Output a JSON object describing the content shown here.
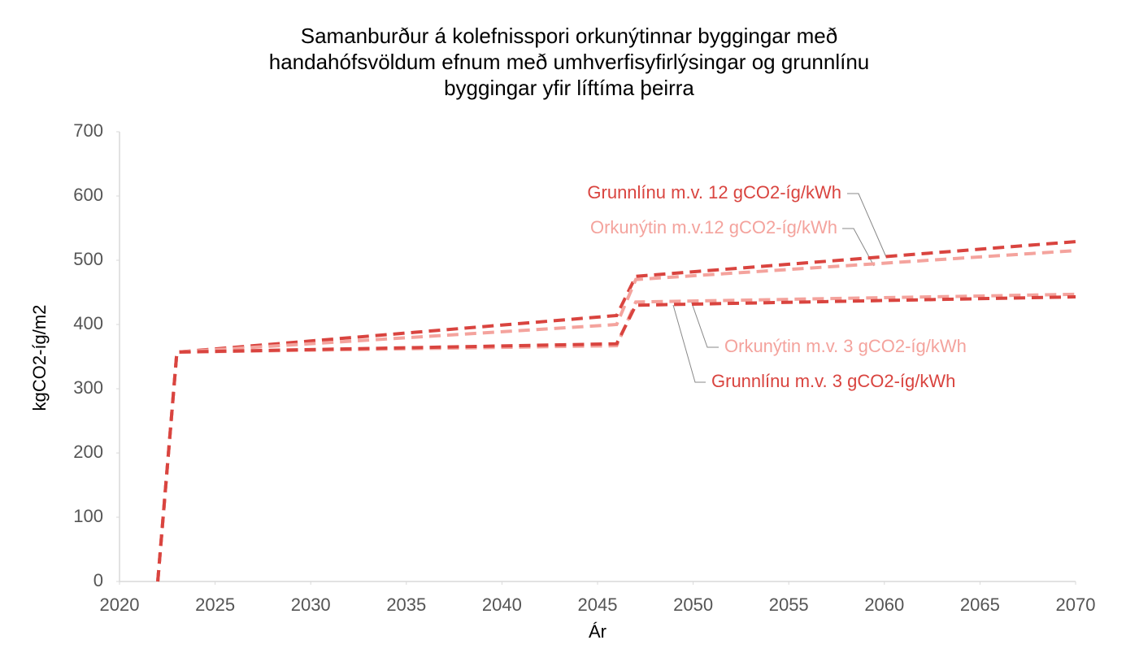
{
  "chart_data": {
    "type": "line",
    "title": [
      "Samanburður á kolefnisspori orkunýtinnar byggingar með",
      "handahófsvöldum efnum með umhverfisyfirlýsingar og grunnlínu",
      "byggingar yfir líftíma þeirra"
    ],
    "xlabel": "Ár",
    "ylabel": "kgCO2-íg/m2",
    "x": [
      2022,
      2023,
      2046,
      2047,
      2070
    ],
    "series": [
      {
        "name": "Grunnlínu m.v. 12 gCO2-íg/kWh",
        "color": "#d9443f",
        "values": [
          0,
          357,
          414,
          475,
          529
        ]
      },
      {
        "name": "Orkunýtin m.v.12 gCO2-íg/kWh",
        "color": "#f4a39d",
        "values": [
          0,
          357,
          400,
          470,
          515
        ]
      },
      {
        "name": "Orkunýtin m.v. 3  gCO2-íg/kWh",
        "color": "#f4a39d",
        "values": [
          0,
          357,
          367,
          435,
          447
        ]
      },
      {
        "name": "Grunnlínu m.v. 3 gCO2-íg/kWh",
        "color": "#d9443f",
        "values": [
          0,
          357,
          370,
          430,
          443
        ]
      }
    ],
    "xlim": [
      2020,
      2070
    ],
    "xticks": [
      2020,
      2025,
      2030,
      2035,
      2040,
      2045,
      2050,
      2055,
      2060,
      2065,
      2070
    ],
    "ylim": [
      0,
      700
    ],
    "yticks": [
      0,
      100,
      200,
      300,
      400,
      500,
      600,
      700
    ],
    "grid": false,
    "dashed": true
  }
}
